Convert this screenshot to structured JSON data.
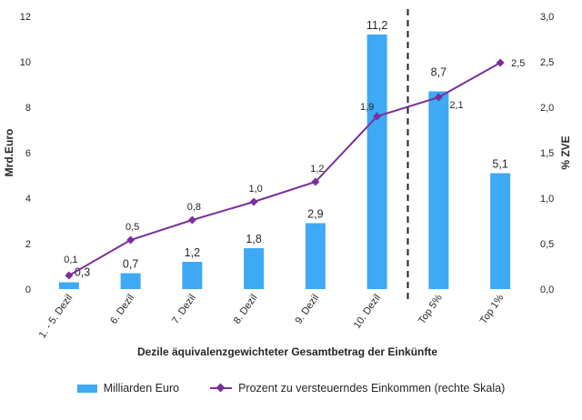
{
  "chart_data": {
    "type": "bar",
    "categories": [
      "1. - 5. Dezil",
      "6. Dezil",
      "7. Dezil",
      "8. Dezil",
      "9. Dezil",
      "10. Dezil",
      "Top 5%",
      "Top 1%"
    ],
    "series": [
      {
        "name": "Milliarden Euro",
        "type": "bar",
        "axis": "left",
        "color": "#3ea9f5",
        "values": [
          0.3,
          0.7,
          1.2,
          1.8,
          2.9,
          11.2,
          8.7,
          5.1
        ],
        "labels": [
          "0,3",
          "0,7",
          "1,2",
          "1,8",
          "2,9",
          "11,2",
          "8,7",
          "5,1"
        ]
      },
      {
        "name": "Prozent zu versteuerndes Einkommen (rechte Skala)",
        "type": "line",
        "axis": "right",
        "color": "#7b2f9c",
        "values": [
          0.15,
          0.54,
          0.76,
          0.96,
          1.18,
          1.9,
          2.11,
          2.49
        ],
        "labels": [
          "0,1",
          "0,5",
          "0,8",
          "1,0",
          "1,2",
          "1,9",
          "2,1",
          "2,5"
        ]
      }
    ],
    "left_axis": {
      "label": "Mrd.Euro",
      "ylim": [
        0,
        12
      ],
      "ticks": [
        0,
        2,
        4,
        6,
        8,
        10,
        12
      ],
      "tick_labels": [
        "0",
        "2",
        "4",
        "6",
        "8",
        "10",
        "12"
      ]
    },
    "right_axis": {
      "label": "% ZVE",
      "ylim": [
        0,
        3
      ],
      "ticks": [
        0,
        0.5,
        1,
        1.5,
        2,
        2.5,
        3
      ],
      "tick_labels": [
        "0,0",
        "0,5",
        "1,0",
        "1,5",
        "2,0",
        "2,5",
        "3,0"
      ]
    },
    "xlabel": "Dezile äquivalenzgewichteter Gesamtbetrag der Einkünfte",
    "divider_after_index": 5,
    "grid": false,
    "legend_position": "bottom"
  }
}
